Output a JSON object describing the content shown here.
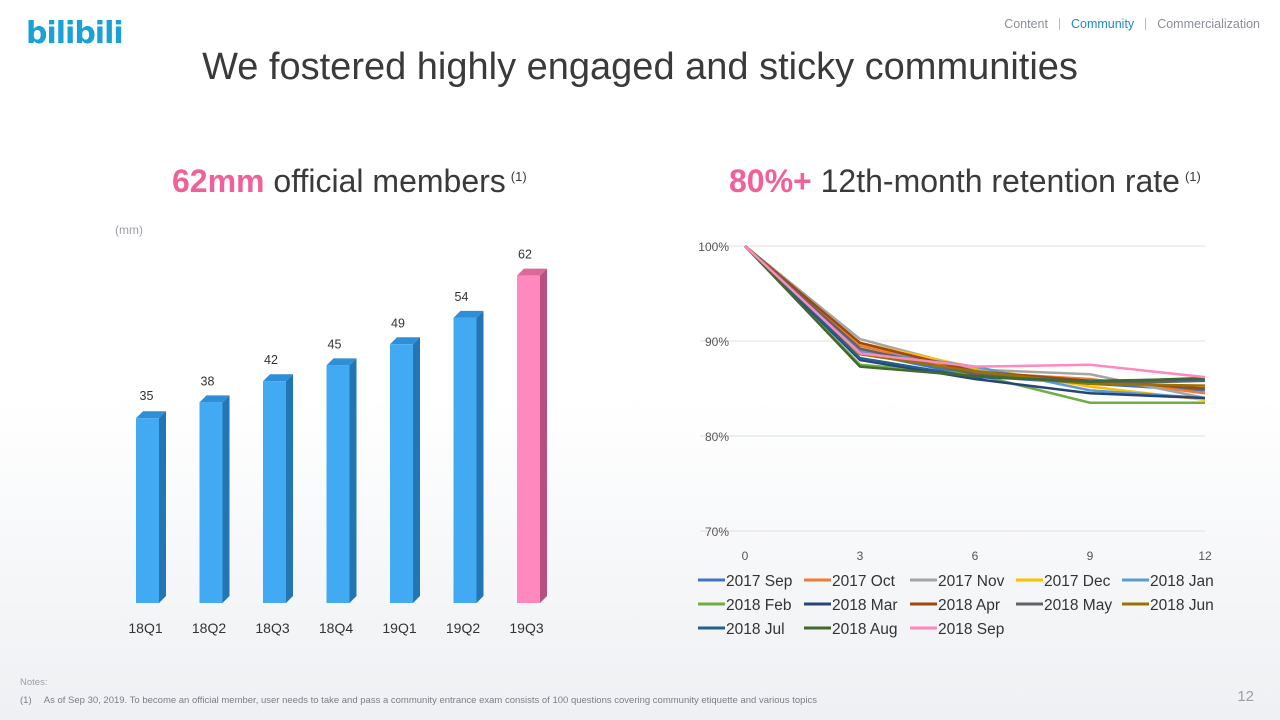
{
  "logo": "bilibili",
  "nav": {
    "items": [
      "Content",
      "Community",
      "Commercialization"
    ],
    "active": 1
  },
  "title": "We fostered highly engaged and sticky communities",
  "left_header": {
    "highlight": "62mm",
    "text": "official members",
    "sup": "(1)"
  },
  "right_header": {
    "highlight": "80%+",
    "text": "12th-month retention rate",
    "sup": "(1)"
  },
  "unit_label": "(mm)",
  "colors": {
    "bar": "#42aaf2",
    "bar_side": "#2276b3",
    "bar_top": "#2e8fd6",
    "highlight_bar": "#ff88bf",
    "highlight_side": "#b94f7f",
    "highlight_top": "#d96a9a",
    "accent": "#f0609a"
  },
  "chart_data": [
    {
      "type": "bar",
      "categories": [
        "18Q1",
        "18Q2",
        "18Q3",
        "18Q4",
        "19Q1",
        "19Q2",
        "19Q3"
      ],
      "values": [
        35,
        38,
        42,
        45,
        49,
        54,
        62
      ],
      "highlight_index": 6,
      "ylabel": "(mm)"
    },
    {
      "type": "line",
      "x": [
        0,
        3,
        6,
        9,
        12
      ],
      "ylim": [
        70,
        100
      ],
      "yticks": [
        "70%",
        "80%",
        "90%",
        "100%"
      ],
      "xticks": [
        "0",
        "3",
        "6",
        "9",
        "12"
      ],
      "grid": true,
      "legend": "bottom",
      "series": [
        {
          "name": "2017 Sep",
          "color": "#4472c4",
          "values": [
            100,
            88.8,
            86.3,
            85.5,
            84.8
          ]
        },
        {
          "name": "2017 Oct",
          "color": "#ed7d31",
          "values": [
            100,
            89.5,
            86.7,
            86.0,
            84.5
          ]
        },
        {
          "name": "2017 Nov",
          "color": "#a5a5a5",
          "values": [
            100,
            90.2,
            87.0,
            86.5,
            84.0
          ]
        },
        {
          "name": "2017 Dec",
          "color": "#ffc000",
          "values": [
            100,
            89.8,
            87.2,
            85.2,
            83.8
          ]
        },
        {
          "name": "2018 Jan",
          "color": "#5b9bd5",
          "values": [
            100,
            89.0,
            87.3,
            84.8,
            84.0
          ]
        },
        {
          "name": "2018 Feb",
          "color": "#70ad47",
          "values": [
            100,
            87.5,
            86.5,
            83.5,
            83.5
          ]
        },
        {
          "name": "2018 Mar",
          "color": "#264478",
          "values": [
            100,
            88.0,
            86.0,
            84.5,
            84.0
          ]
        },
        {
          "name": "2018 Apr",
          "color": "#9e480e",
          "values": [
            100,
            89.8,
            86.8,
            85.8,
            85.0
          ]
        },
        {
          "name": "2018 May",
          "color": "#636363",
          "values": [
            100,
            89.2,
            86.5,
            85.5,
            85.8
          ]
        },
        {
          "name": "2018 Jun",
          "color": "#997300",
          "values": [
            100,
            88.6,
            86.8,
            85.5,
            85.3
          ]
        },
        {
          "name": "2018 Jul",
          "color": "#255e91",
          "values": [
            100,
            88.2,
            86.2,
            85.8,
            86.0
          ]
        },
        {
          "name": "2018 Aug",
          "color": "#43682b",
          "values": [
            100,
            87.3,
            86.3,
            85.7,
            86.1
          ]
        },
        {
          "name": "2018 Sep",
          "color": "#ff88bf",
          "values": [
            100,
            88.7,
            87.3,
            87.5,
            86.2
          ]
        }
      ]
    }
  ],
  "notes_label": "Notes:",
  "footnote": {
    "num": "(1)",
    "text": "As of Sep 30, 2019. To become an official member, user needs to take and pass a community entrance exam consists of 100 questions covering community etiquette and various topics"
  },
  "page_number": "12"
}
